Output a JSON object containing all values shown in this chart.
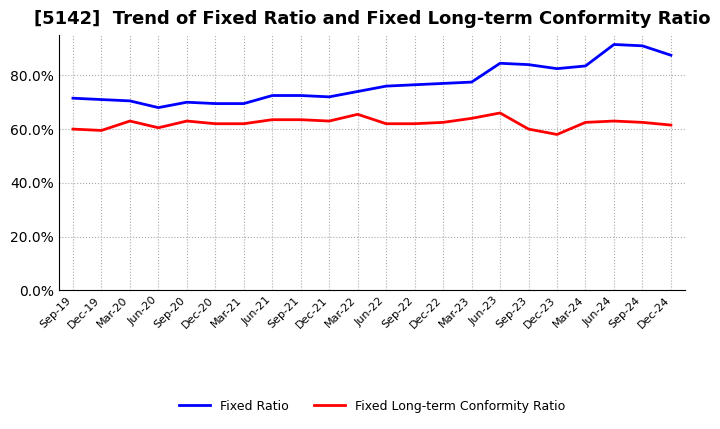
{
  "title": "[5142]  Trend of Fixed Ratio and Fixed Long-term Conformity Ratio",
  "x_labels": [
    "Sep-19",
    "Dec-19",
    "Mar-20",
    "Jun-20",
    "Sep-20",
    "Dec-20",
    "Mar-21",
    "Jun-21",
    "Sep-21",
    "Dec-21",
    "Mar-22",
    "Jun-22",
    "Sep-22",
    "Dec-22",
    "Mar-23",
    "Jun-23",
    "Sep-23",
    "Dec-23",
    "Mar-24",
    "Jun-24",
    "Sep-24",
    "Dec-24"
  ],
  "fixed_ratio": [
    71.5,
    71.0,
    70.5,
    68.0,
    70.0,
    69.5,
    69.5,
    72.5,
    72.5,
    72.0,
    74.0,
    76.0,
    76.5,
    77.0,
    77.5,
    84.5,
    84.0,
    82.5,
    83.5,
    91.5,
    91.0,
    87.5
  ],
  "fixed_lt_ratio": [
    60.0,
    59.5,
    63.0,
    60.5,
    63.0,
    62.0,
    62.0,
    63.5,
    63.5,
    63.0,
    65.5,
    62.0,
    62.0,
    62.5,
    64.0,
    66.0,
    60.0,
    58.0,
    62.5,
    63.0,
    62.5,
    61.5
  ],
  "fixed_ratio_color": "#0000FF",
  "fixed_lt_ratio_color": "#FF0000",
  "ylim": [
    0,
    95
  ],
  "yticks": [
    0,
    20,
    40,
    60,
    80
  ],
  "background_color": "#FFFFFF",
  "grid_color": "#AAAAAA",
  "title_fontsize": 13,
  "legend_labels": [
    "Fixed Ratio",
    "Fixed Long-term Conformity Ratio"
  ]
}
